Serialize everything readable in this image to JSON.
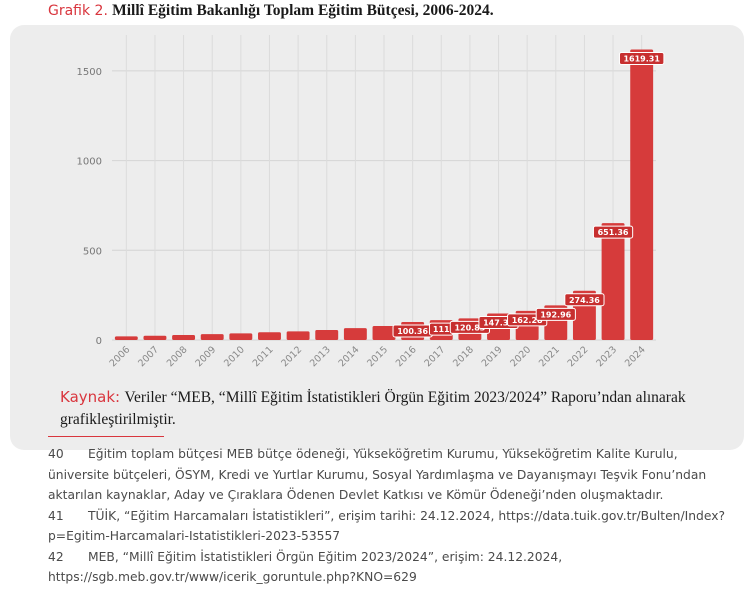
{
  "caption": {
    "label": "Grafik 2.",
    "text": "Millî Eğitim Bakanlığı Toplam Eğitim Bütçesi, 2006-2024."
  },
  "chart_data": {
    "type": "bar",
    "categories": [
      "2006",
      "2007",
      "2008",
      "2009",
      "2010",
      "2011",
      "2012",
      "2013",
      "2014",
      "2015",
      "2016",
      "2017",
      "2018",
      "2019",
      "2020",
      "2021",
      "2022",
      "2023",
      "2024"
    ],
    "values": [
      20,
      24,
      28,
      33,
      37,
      43,
      48,
      56,
      66,
      78,
      100.36,
      111,
      120.83,
      147.36,
      162.28,
      192.96,
      274.36,
      651.36,
      1619.31
    ],
    "data_labels": [
      "",
      "",
      "",
      "",
      "",
      "",
      "",
      "",
      "",
      "",
      "100.36",
      "111",
      "120.83",
      "147.36",
      "162.28",
      "192.96",
      "274.36",
      "651.36",
      "1619.31"
    ],
    "ylim": [
      0,
      1700
    ],
    "yticks": [
      0,
      500,
      1000,
      1500
    ],
    "grid": true,
    "bar_color": "#d63b3b",
    "xlabel": "",
    "ylabel": ""
  },
  "source": {
    "label": "Kaynak:",
    "text": "Veriler “MEB, “Millî Eğitim İstatistikleri Örgün Eğitim 2023/2024” Raporu’ndan alınarak grafikleştirilmiştir."
  },
  "footnotes": [
    {
      "num": "40",
      "text": "Eğitim toplam bütçesi MEB bütçe ödeneği, Yükseköğretim Kurumu, Yükseköğretim Kalite Kurulu, üniversite bütçeleri, ÖSYM, Kredi ve Yurtlar Kurumu, Sosyal Yardımlaşma ve Dayanışmayı Teşvik Fonu’ndan aktarılan kaynaklar, Aday ve Çıraklara Ödenen Devlet Katkısı ve Kömür Ödeneği’nden oluşmaktadır."
    },
    {
      "num": "41",
      "text": "TÜİK, “Eğitim Harcamaları İstatistikleri”, erişim tarihi: 24.12.2024, https://data.tuik.gov.tr/Bulten/Index?p=Egitim-Harcamalari-Istatistikleri-2023-53557"
    },
    {
      "num": "42",
      "text": "MEB, “Millî Eğitim İstatistikleri Örgün Eğitim 2023/2024”, erişim: 24.12.2024, https://sgb.meb.gov.tr/www/icerik_goruntule.php?KNO=629"
    }
  ]
}
